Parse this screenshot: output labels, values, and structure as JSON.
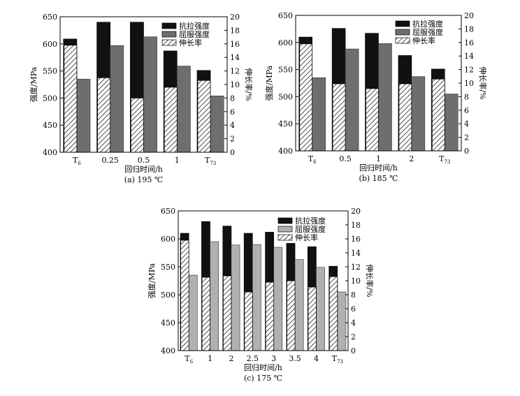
{
  "colors": {
    "tensile": "#111111",
    "yield": "#6e6e6e",
    "yield_light": "#b0b0b0",
    "axis": "#000000",
    "background": "#ffffff"
  },
  "chart_data": [
    {
      "type": "bar",
      "caption": "(a) 195 ℃",
      "xlabel": "回归时间/h",
      "ylabel": "强度/MPa",
      "y2label": "伸长率/%",
      "categories": [
        "T6",
        "0.25",
        "0.5",
        "1",
        "T73"
      ],
      "ylim": [
        400,
        650
      ],
      "yticks": [
        "400",
        "450",
        "500",
        "550",
        "600",
        "650"
      ],
      "y2lim": [
        0,
        20
      ],
      "y2ticks": [
        "0",
        "2",
        "4",
        "6",
        "8",
        "10",
        "12",
        "14",
        "16",
        "18",
        "20"
      ],
      "legend": [
        "抗拉强度",
        "屈服强度",
        "伸长率"
      ],
      "legend_position": "top-right",
      "series": [
        {
          "name": "抗拉强度",
          "axis": "left",
          "values": [
            609,
            640,
            640,
            587,
            551
          ]
        },
        {
          "name": "屈服强度",
          "axis": "left",
          "values": [
            535,
            597,
            613,
            559,
            504
          ]
        },
        {
          "name": "伸长率",
          "axis": "right",
          "values": [
            15.8,
            11.0,
            8.0,
            9.6,
            10.6
          ]
        }
      ]
    },
    {
      "type": "bar",
      "caption": "(b) 185 ℃",
      "xlabel": "回归时间/h",
      "ylabel": "强度/MPa",
      "y2label": "伸长率/%",
      "categories": [
        "T6",
        "0.5",
        "1",
        "2",
        "T73"
      ],
      "ylim": [
        400,
        650
      ],
      "yticks": [
        "400",
        "450",
        "500",
        "550",
        "600",
        "650"
      ],
      "y2lim": [
        0,
        20
      ],
      "y2ticks": [
        "0",
        "2",
        "4",
        "6",
        "8",
        "10",
        "12",
        "14",
        "16",
        "18",
        "20"
      ],
      "legend": [
        "抗拉强度",
        "屈服强度",
        "伸长率"
      ],
      "legend_position": "top-right",
      "series": [
        {
          "name": "抗拉强度",
          "axis": "left",
          "values": [
            610,
            626,
            617,
            576,
            551
          ]
        },
        {
          "name": "屈服强度",
          "axis": "left",
          "values": [
            535,
            588,
            598,
            537,
            505
          ]
        },
        {
          "name": "伸长率",
          "axis": "right",
          "values": [
            15.8,
            9.9,
            9.2,
            9.9,
            10.6
          ]
        }
      ]
    },
    {
      "type": "bar",
      "caption": "(c) 175 ℃",
      "xlabel": "回归时间/h",
      "ylabel": "强度/MPa",
      "y2label": "伸长率/%",
      "categories": [
        "T6",
        "1",
        "2",
        "2.5",
        "3",
        "3.5",
        "4",
        "T73"
      ],
      "ylim": [
        400,
        650
      ],
      "yticks": [
        "400",
        "450",
        "500",
        "550",
        "600",
        "650"
      ],
      "y2lim": [
        0,
        20
      ],
      "y2ticks": [
        "0",
        "2",
        "4",
        "6",
        "8",
        "10",
        "12",
        "14",
        "16",
        "18",
        "20"
      ],
      "legend": [
        "抗拉强度",
        "屈服强度",
        "伸长率"
      ],
      "legend_position": "top-right",
      "series": [
        {
          "name": "抗拉强度",
          "axis": "left",
          "values": [
            610,
            631,
            623,
            610,
            612,
            592,
            586,
            551
          ]
        },
        {
          "name": "屈服强度",
          "axis": "left",
          "values": [
            535,
            595,
            589,
            590,
            585,
            563,
            549,
            505
          ]
        },
        {
          "name": "伸长率",
          "axis": "right",
          "values": [
            15.8,
            10.5,
            10.7,
            8.4,
            9.8,
            10.0,
            9.1,
            10.6
          ]
        }
      ]
    }
  ]
}
